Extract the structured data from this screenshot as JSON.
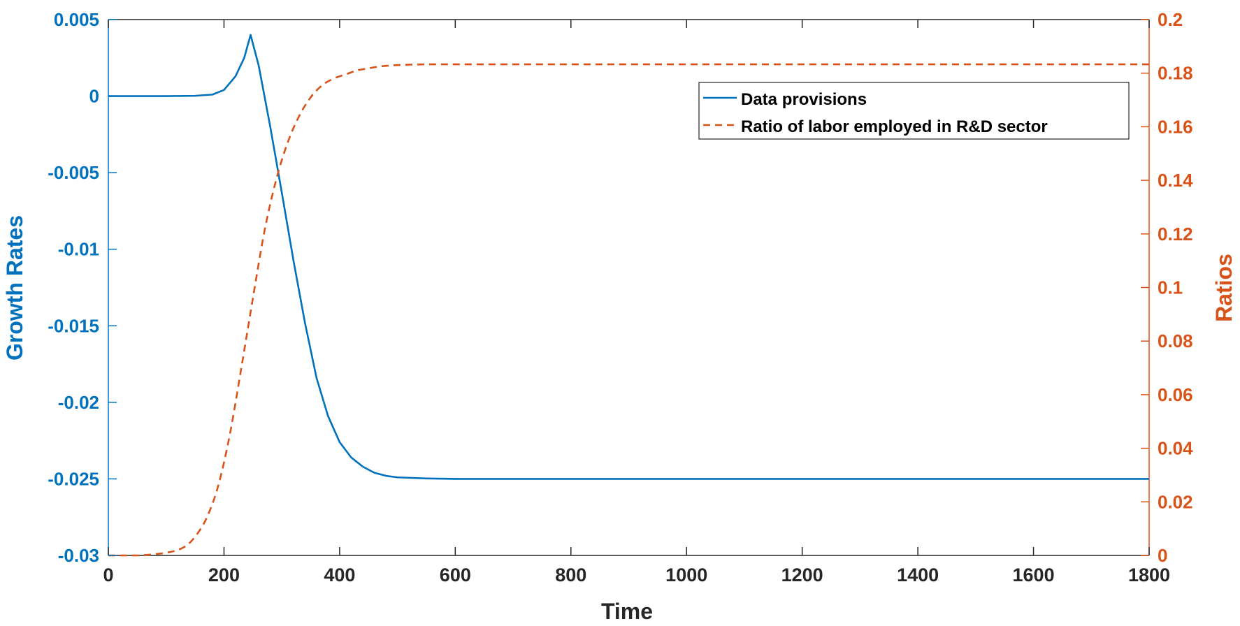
{
  "chart_data": {
    "type": "line",
    "xlabel": "Time",
    "ylabel_left": "Growth Rates",
    "ylabel_right": "Ratios",
    "xlim": [
      0,
      1800
    ],
    "ylim_left": [
      -0.03,
      0.005
    ],
    "ylim_right": [
      0,
      0.2
    ],
    "x_ticks": [
      "0",
      "200",
      "400",
      "600",
      "800",
      "1000",
      "1200",
      "1400",
      "1600",
      "1800"
    ],
    "y_left_ticks": [
      "0.005",
      "0",
      "-0.005",
      "-0.01",
      "-0.015",
      "-0.02",
      "-0.025",
      "-0.03"
    ],
    "y_right_ticks": [
      "0.2",
      "0.18",
      "0.16",
      "0.14",
      "0.12",
      "0.1",
      "0.08",
      "0.06",
      "0.04",
      "0.02",
      "0"
    ],
    "grid": false,
    "legend_position": "top-right",
    "colors": {
      "left_axis": "#0072BD",
      "right_axis": "#D95319",
      "axes": "#262626"
    },
    "series": [
      {
        "name": "Data provisions",
        "axis": "left",
        "style": "solid",
        "color": "#0072BD",
        "x": [
          0,
          100,
          150,
          180,
          200,
          220,
          235,
          246,
          260,
          280,
          300,
          320,
          340,
          360,
          380,
          400,
          420,
          440,
          460,
          480,
          500,
          550,
          600,
          700,
          800,
          1000,
          1200,
          1400,
          1600,
          1800
        ],
        "y": [
          0,
          0,
          2e-05,
          0.0001,
          0.0004,
          0.0013,
          0.0025,
          0.004,
          0.002,
          -0.002,
          -0.0063,
          -0.0107,
          -0.0148,
          -0.0184,
          -0.0209,
          -0.0226,
          -0.0236,
          -0.0242,
          -0.0246,
          -0.0248,
          -0.0249,
          -0.02497,
          -0.025,
          -0.025,
          -0.025,
          -0.025,
          -0.025,
          -0.025,
          -0.025,
          -0.025
        ]
      },
      {
        "name": "Ratio of labor employed in R&D sector",
        "axis": "right",
        "style": "dashed",
        "color": "#D95319",
        "x": [
          0,
          50,
          100,
          130,
          150,
          170,
          190,
          210,
          230,
          250,
          270,
          290,
          310,
          330,
          350,
          370,
          390,
          410,
          430,
          450,
          470,
          500,
          550,
          600,
          700,
          800,
          1000,
          1200,
          1400,
          1600,
          1800
        ],
        "y": [
          0,
          0,
          0.001,
          0.003,
          0.007,
          0.014,
          0.026,
          0.045,
          0.07,
          0.096,
          0.121,
          0.14,
          0.154,
          0.164,
          0.171,
          0.1755,
          0.178,
          0.1795,
          0.181,
          0.1818,
          0.1825,
          0.183,
          0.1833,
          0.1833,
          0.1833,
          0.1833,
          0.1833,
          0.1833,
          0.1833,
          0.1833,
          0.1833
        ]
      }
    ]
  }
}
